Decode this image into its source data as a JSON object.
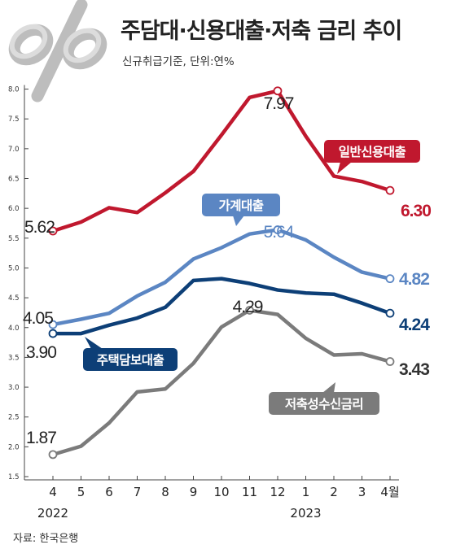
{
  "title": "주담대·신용대출·저축 금리 추이",
  "subtitle": "신규취급기준, 단위:연%",
  "source": "자료: 한국은행",
  "logo_icon": "percent-icon",
  "chart_data": {
    "type": "line",
    "x": [
      "4",
      "5",
      "6",
      "7",
      "8",
      "9",
      "10",
      "11",
      "12",
      "1",
      "2",
      "3",
      "4월"
    ],
    "year_labels": [
      "2022",
      "2023"
    ],
    "ylim": [
      1.5,
      8.0
    ],
    "yticks": [
      "1.5",
      "2.0",
      "2.5",
      "3.0",
      "3.5",
      "4.0",
      "4.5",
      "5.0",
      "5.5",
      "6.0",
      "6.5",
      "7.0",
      "7.5",
      "8.0"
    ],
    "grid": false,
    "series": [
      {
        "name": "일반신용대출",
        "color": "#c0182e",
        "values": [
          5.62,
          5.77,
          6.01,
          5.93,
          6.26,
          6.62,
          7.23,
          7.86,
          7.97,
          7.21,
          6.54,
          6.45,
          6.3
        ],
        "start_label": "5.62",
        "peak_label": "7.97",
        "end_label": "6.30"
      },
      {
        "name": "가계대출",
        "color": "#5b86c3",
        "values": [
          4.05,
          4.14,
          4.24,
          4.53,
          4.76,
          5.15,
          5.34,
          5.57,
          5.64,
          5.47,
          5.18,
          4.93,
          4.82
        ],
        "start_label": "4.05",
        "peak_label": "5.64",
        "end_label": "4.82"
      },
      {
        "name": "주택담보대출",
        "color": "#0d3f77",
        "values": [
          3.9,
          3.9,
          4.04,
          4.16,
          4.34,
          4.79,
          4.82,
          4.74,
          4.63,
          4.58,
          4.56,
          4.41,
          4.24
        ],
        "start_label": "3.90",
        "end_label": "4.24"
      },
      {
        "name": "저축성수신금리",
        "color": "#7b7b7b",
        "values": [
          1.87,
          2.01,
          2.4,
          2.92,
          2.97,
          3.4,
          4.01,
          4.29,
          4.22,
          3.82,
          3.54,
          3.56,
          3.43
        ],
        "start_label": "1.87",
        "peak_label": "4.29",
        "end_label": "3.43"
      }
    ]
  }
}
